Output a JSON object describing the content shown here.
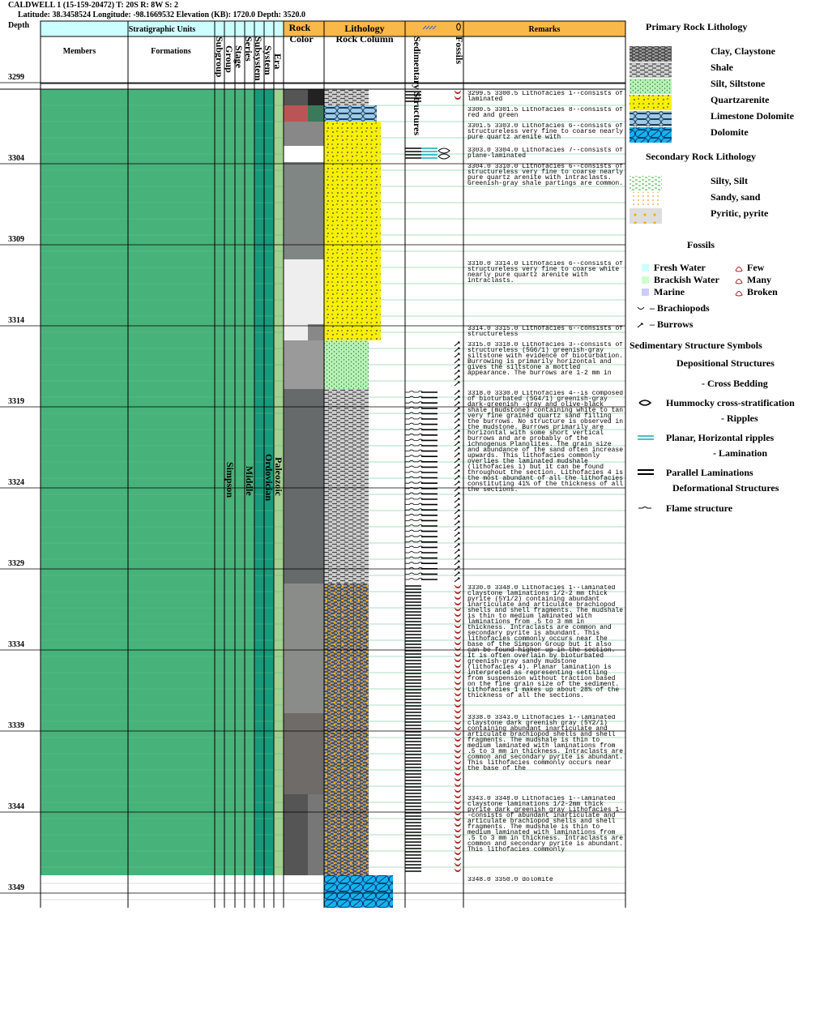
{
  "header": {
    "title": "CALDWELL 1 (15-159-20472) T: 20S R: 8W S: 2",
    "location": "Latitude: 38.3458524 Longitude: -98.1669532 Elevation (KB): 1720.0 Depth: 3520.0"
  },
  "columns": {
    "depth": "Depth",
    "strat": "Stratigraphic Units",
    "members": "Members",
    "formations": "Formations",
    "subgroup": "Subgroup",
    "group": "Group",
    "stage": "Stage",
    "series": "Series",
    "subsystem": "Subsystem",
    "system": "System",
    "era": "Era",
    "rock": "Rock",
    "color": "Color",
    "lithology": "Lithology",
    "rock_column": "Rock Column",
    "sed": "Sedimentary Structures",
    "fossils": "Fossils",
    "remarks": "Remarks"
  },
  "units": {
    "group": "Simpson",
    "series": "Middle",
    "system": "Ordovician",
    "era": "Paleozoic"
  },
  "depths": [
    3299,
    3304,
    3309,
    3314,
    3319,
    3324,
    3329,
    3334,
    3339,
    3344,
    3349
  ],
  "remarks": [
    {
      "from": "3299.5",
      "to": "3300.5",
      "text": "Lithofacies 1--consists of laminated"
    },
    {
      "from": "3300.5",
      "to": "3301.5",
      "text": "Lithofacies 8--consists of red and green"
    },
    {
      "from": "3301.5",
      "to": "3303.0",
      "text": "Lithofacies 6--consists of structureless very fine to coarse nearly pure quartz arenite with"
    },
    {
      "from": "3303.0",
      "to": "3304.0",
      "text": "Lithofacies 7--consists of plane-laminated"
    },
    {
      "from": "3304.0",
      "to": "3310.0",
      "text": "Lithofacies 6--consists of structureless very fine to coarse nearly pure quartz arenite with intraclasts. Greenish-gray shale partings are common."
    },
    {
      "from": "3310.0",
      "to": "3314.0",
      "text": "Lithofacies 6--consists of structureless very fine to coarse white nearly pure quartz arenite with intraclasts."
    },
    {
      "from": "3314.0",
      "to": "3315.0",
      "text": "Lithofacies 6--consists of structureless"
    },
    {
      "from": "3315.0",
      "to": "3318.0",
      "text": "Lithofacies 3--consists of structureless (5G6/1) greenish-gray siltstone with evidence of bioturbation. Burrowing is primarily horizontal and gives the siltstone a mottled appearance. The burrows are 1-2 mm in"
    },
    {
      "from": "3318.0",
      "to": "3330.0",
      "text": "Lithofacies 4--is composed of bioturbated (5G4/1) greenish-gray dark-greenish -gray and olive-black shale (mudstone) containing white to tan very fine grained quartz sand filling the burrows. No structure is observed in the mudstone. Burrows primarily are horizontal with some short vertical burrows and are probably of the ichnogenus Planolites. The grain size and abundance of the sand often increase upwards. This lithofacies commonly overlies the laminated mudshale (lithofacies 1) but it can be found throughout the section. Lithofacies 4 is the most abundant of all the lithofacies constituting 41% of the thickness of all the sections."
    },
    {
      "from": "3330.0",
      "to": "3348.0",
      "text": "Lithofacies 1--laminated claystone laminations 1/2-2 mm thick pyrite (5Y1/2) containing abundant inarticulate and articulate brachiopod shells and shell fragments. The mudshale is thin to medium laminated with laminations from .5 to 3 mm in thickness. Intraclasts are common and secondary pyrite is abundant. This lithofacies commonly occurs near the base of the Simpson Group but it also can be found higher up in the section. It is often overlain by bioturbated greenish-gray sandy mudstone (lithofacies 4). Planar lamination is interpreted as representing settling from suspension without traction based on the fine grain size of the sediment. Lithofacies 1 makes up about 28% of the thickness of all the sections."
    },
    {
      "from": "3338.0",
      "to": "3343.0",
      "text": "Lithofacies 1--laminated claystone dark greenish gray (5Y2/1) containing abundant inarticulate and articulate brachiopod shells and shell fragments. The mudshale is thin to medium laminated with laminations from .5 to 3 mm in thickness. Intraclasts are common and secondary pyrite is abundant. This lithofacies commonly occurs near the base of the"
    },
    {
      "from": "3343.0",
      "to": "3348.0",
      "text": "Lithofacies 1--laminated claystone laminations 1/2-2mm thick pyrite dark greenish gray Lithofacies 1--consists of abundant inarticulate and articulate brachiopod shells and shell fragments. The mudshale is thin to medium laminated with laminations from .5 to 3 mm in thickness. Intraclasts are common and secondary pyrite is abundant. This lithofacies commonly"
    },
    {
      "from": "3348.0",
      "to": "3350.0",
      "text": "dolomite"
    }
  ],
  "legend": {
    "primary_title": "Primary Rock Lithology",
    "primary": [
      "Clay, Claystone",
      "Shale",
      "Silt, Siltstone",
      "Quartzarenite",
      "Limestone Dolomite",
      "Dolomite"
    ],
    "secondary_title": "Secondary Rock Lithology",
    "secondary": [
      "Silty, Silt",
      "Sandy, sand",
      "Pyritic, pyrite"
    ],
    "fossils_title": "Fossils",
    "water": [
      "Fresh Water",
      "Brackish Water",
      "Marine"
    ],
    "abundance": [
      "Few",
      "Many",
      "Broken"
    ],
    "brachiopods": "– Brachiopods",
    "burrows": "– Burrows",
    "sed_title": "Sedimentary Structure Symbols",
    "depositional": "Depositional Structures",
    "cross_bedding": "- Cross Bedding",
    "hummocky": "Hummocky cross-stratification",
    "ripples": "- Ripples",
    "planar": "Planar, Horizontal ripples",
    "lamination": "- Lamination",
    "parallel": "Parallel Laminations",
    "deformational": "Deformational Structures",
    "flame": "Flame structure"
  }
}
